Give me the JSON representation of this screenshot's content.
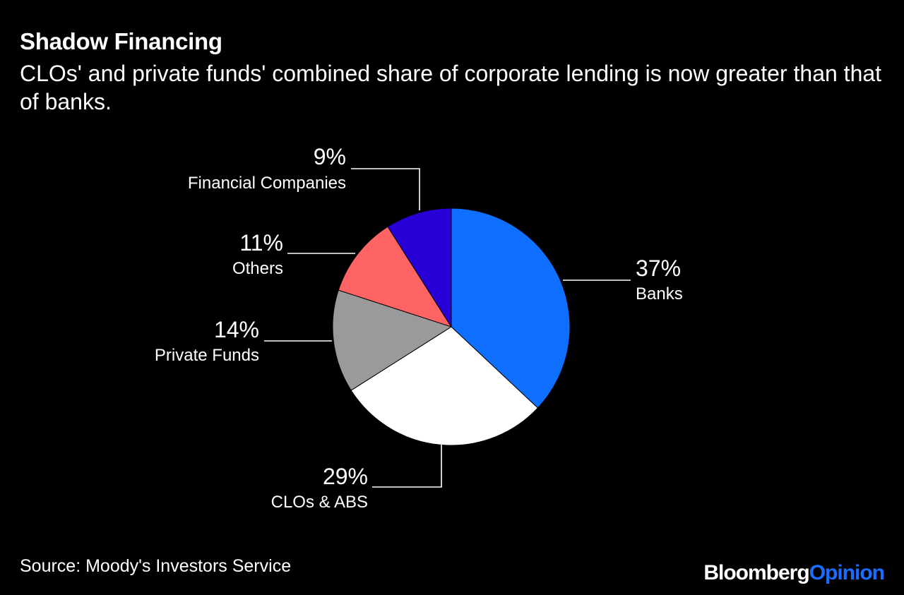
{
  "title": "Shadow Financing",
  "subtitle": "CLOs' and private funds' combined share of corporate lending is now greater than that of banks.",
  "source": "Source: Moody's Investors Service",
  "brand": {
    "primary": "Bloomberg",
    "secondary": "Opinion",
    "secondary_color": "#1a6dff"
  },
  "chart_data": {
    "type": "pie",
    "slices": [
      {
        "label": "Banks",
        "value": 37,
        "value_label": "37%",
        "color": "#0f6fff"
      },
      {
        "label": "CLOs & ABS",
        "value": 29,
        "value_label": "29%",
        "color": "#ffffff"
      },
      {
        "label": "Private Funds",
        "value": 14,
        "value_label": "14%",
        "color": "#9a9a9a"
      },
      {
        "label": "Others",
        "value": 11,
        "value_label": "11%",
        "color": "#ff6464"
      },
      {
        "label": "Financial Companies",
        "value": 9,
        "value_label": "9%",
        "color": "#2800d6"
      }
    ]
  }
}
